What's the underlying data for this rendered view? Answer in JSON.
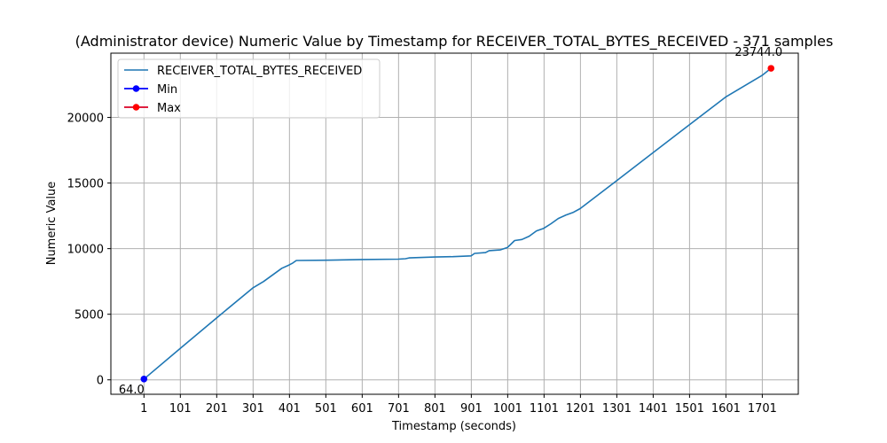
{
  "chart_data": {
    "type": "line",
    "title": "(Administrator device) Numeric Value by Timestamp for RECEIVER_TOTAL_BYTES_RECEIVED - 371 samples",
    "xlabel": "Timestamp (seconds)",
    "ylabel": "Numeric Value",
    "xlim": [
      -90,
      1800
    ],
    "ylim": [
      -1100,
      24900
    ],
    "xticks": [
      1,
      101,
      201,
      301,
      401,
      501,
      601,
      701,
      801,
      901,
      1001,
      1101,
      1201,
      1301,
      1401,
      1501,
      1601,
      1701
    ],
    "yticks": [
      0,
      5000,
      10000,
      15000,
      20000
    ],
    "grid": true,
    "legend_position": "top-left",
    "series": [
      {
        "name": "RECEIVER_TOTAL_BYTES_RECEIVED",
        "color": "#1f77b4",
        "x": [
          1,
          100,
          200,
          300,
          330,
          380,
          400,
          410,
          420,
          500,
          600,
          700,
          720,
          730,
          800,
          850,
          900,
          910,
          940,
          950,
          980,
          1000,
          1010,
          1020,
          1040,
          1060,
          1080,
          1100,
          1120,
          1140,
          1160,
          1180,
          1200,
          1300,
          1400,
          1500,
          1600,
          1700,
          1725
        ],
        "values": [
          64,
          2380,
          4700,
          7000,
          7500,
          8500,
          8750,
          8900,
          9100,
          9120,
          9170,
          9200,
          9230,
          9290,
          9360,
          9390,
          9450,
          9640,
          9700,
          9850,
          9900,
          10080,
          10350,
          10620,
          10700,
          10950,
          11350,
          11550,
          11900,
          12300,
          12550,
          12750,
          13050,
          15170,
          17300,
          19430,
          21550,
          23200,
          23744
        ]
      }
    ],
    "markers": [
      {
        "name": "Min",
        "x": 1,
        "y": 64,
        "color": "#0000ff",
        "label": "64.0"
      },
      {
        "name": "Max",
        "x": 1725,
        "y": 23744,
        "color": "#ff0000",
        "label": "23744.0"
      }
    ]
  }
}
